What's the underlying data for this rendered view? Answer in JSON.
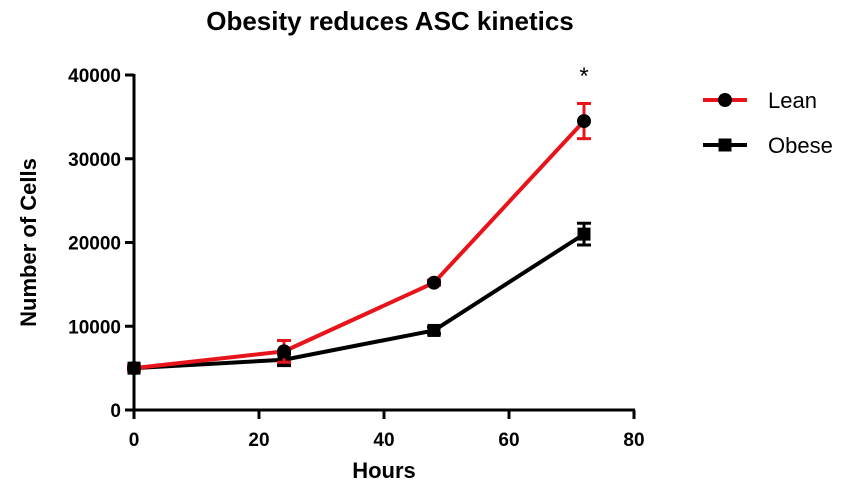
{
  "chart_data": {
    "type": "line",
    "title": "Obesity reduces ASC kinetics",
    "xlabel": "Hours",
    "ylabel": "Number of Cells",
    "xlim": [
      0,
      80
    ],
    "ylim": [
      0,
      40000
    ],
    "x_ticks": [
      0,
      20,
      40,
      60,
      80
    ],
    "y_ticks": [
      0,
      10000,
      20000,
      30000,
      40000
    ],
    "grid": false,
    "legend_position": "right",
    "series": [
      {
        "name": "Lean",
        "color": "#e8141b",
        "marker": "circle",
        "x": [
          0,
          24,
          48,
          72
        ],
        "y": [
          5000,
          7000,
          15200,
          34500
        ],
        "error": [
          300,
          1300,
          300,
          2100
        ]
      },
      {
        "name": "Obese",
        "color": "#000000",
        "marker": "square",
        "x": [
          0,
          24,
          48,
          72
        ],
        "y": [
          5000,
          6000,
          9500,
          21000
        ],
        "error": [
          300,
          700,
          400,
          1300
        ]
      }
    ],
    "annotations": [
      {
        "text": "*",
        "x": 72
      }
    ]
  }
}
